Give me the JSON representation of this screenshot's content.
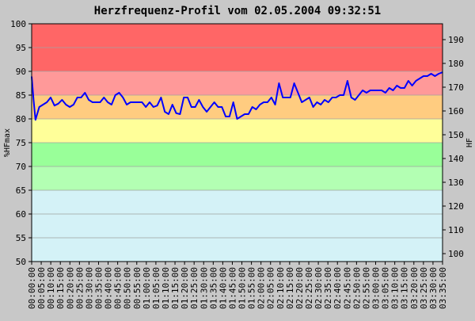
{
  "chart_data": {
    "type": "line",
    "title": "Herzfrequenz-Profil vom 02.05.2004 09:32:51",
    "ylabel_left": "%HFmax",
    "ylabel_right": "HF",
    "ylim": [
      50,
      100
    ],
    "ylim_right": [
      96.67,
      196.67
    ],
    "yticks_left": [
      50,
      55,
      60,
      65,
      70,
      75,
      80,
      85,
      90,
      95,
      100
    ],
    "yticks_right": [
      100,
      110,
      120,
      130,
      140,
      150,
      160,
      170,
      180,
      190
    ],
    "zones": [
      {
        "from": 50,
        "to": 65,
        "color": "#d4f2f7"
      },
      {
        "from": 65,
        "to": 70,
        "color": "#b3ffb3"
      },
      {
        "from": 70,
        "to": 75,
        "color": "#99ff99"
      },
      {
        "from": 75,
        "to": 80,
        "color": "#ffff99"
      },
      {
        "from": 80,
        "to": 85,
        "color": "#ffcc80"
      },
      {
        "from": 85,
        "to": 90,
        "color": "#ff9999"
      },
      {
        "from": 90,
        "to": 100,
        "color": "#ff6666"
      }
    ],
    "grid": true,
    "line_color": "#0000ff",
    "xticks": [
      "00:00:00",
      "00:05:00",
      "00:10:00",
      "00:15:00",
      "00:20:00",
      "00:25:00",
      "00:30:00",
      "00:35:00",
      "00:40:00",
      "00:45:00",
      "00:50:00",
      "00:55:00",
      "01:00:00",
      "01:05:00",
      "01:10:00",
      "01:15:00",
      "01:20:00",
      "01:25:00",
      "01:30:00",
      "01:35:00",
      "01:40:00",
      "01:45:00",
      "01:50:00",
      "01:55:00",
      "02:00:00",
      "02:05:00",
      "02:10:00",
      "02:15:00",
      "02:20:00",
      "02:25:00",
      "02:30:00",
      "02:35:00",
      "02:40:00",
      "02:45:00",
      "02:50:00",
      "02:55:00",
      "03:00:00",
      "03:05:00",
      "03:10:00",
      "03:15:00",
      "03:20:00",
      "03:25:00",
      "03:30:00",
      "03:35:00"
    ],
    "xlim": [
      0,
      216
    ],
    "x": [
      0,
      1,
      2,
      4,
      6,
      8,
      10,
      12,
      14,
      16,
      18,
      20,
      22,
      24,
      26,
      28,
      30,
      32,
      34,
      36,
      38,
      40,
      42,
      44,
      46,
      48,
      50,
      52,
      54,
      56,
      58,
      60,
      62,
      64,
      66,
      68,
      70,
      72,
      74,
      76,
      78,
      80,
      82,
      84,
      86,
      88,
      90,
      92,
      94,
      96,
      98,
      100,
      102,
      104,
      106,
      108,
      110,
      112,
      114,
      116,
      118,
      120,
      122,
      124,
      126,
      128,
      130,
      132,
      134,
      136,
      138,
      140,
      142,
      144,
      146,
      148,
      150,
      152,
      154,
      156,
      158,
      160,
      162,
      164,
      166,
      168,
      170,
      172,
      174,
      176,
      178,
      180,
      182,
      184,
      186,
      188,
      190,
      192,
      194,
      196,
      198,
      200,
      202,
      204,
      206,
      208,
      210,
      212,
      214,
      216
    ],
    "values": [
      88.9,
      84.0,
      79.8,
      82.5,
      83.0,
      83.5,
      84.5,
      82.8,
      83.2,
      84.0,
      83.0,
      82.5,
      83.0,
      84.5,
      84.5,
      85.5,
      84.0,
      83.5,
      83.5,
      83.5,
      84.5,
      83.5,
      83.0,
      85.0,
      85.5,
      84.5,
      83.0,
      83.5,
      83.5,
      83.5,
      83.5,
      82.5,
      83.5,
      82.5,
      82.8,
      84.5,
      81.5,
      81.0,
      83.0,
      81.2,
      81.0,
      84.5,
      84.5,
      82.5,
      82.5,
      84.0,
      82.5,
      81.5,
      82.5,
      83.5,
      82.5,
      82.5,
      80.5,
      80.5,
      83.5,
      80.0,
      80.5,
      81.0,
      81.0,
      82.5,
      82.0,
      83.0,
      83.5,
      83.5,
      84.5,
      83.0,
      87.5,
      84.5,
      84.5,
      84.5,
      87.5,
      85.5,
      83.5,
      84.0,
      84.5,
      82.5,
      83.5,
      83.0,
      84.0,
      83.5,
      84.5,
      84.5,
      85.0,
      85.0,
      88.0,
      84.5,
      84.0,
      85.0,
      86.0,
      85.5,
      86.0,
      86.0,
      86.0,
      86.0,
      85.5,
      86.5,
      86.0,
      87.0,
      86.5,
      86.5,
      88.0,
      87.0,
      88.0,
      88.5,
      89.0,
      89.0,
      89.5,
      89.0,
      89.5,
      89.8
    ]
  }
}
